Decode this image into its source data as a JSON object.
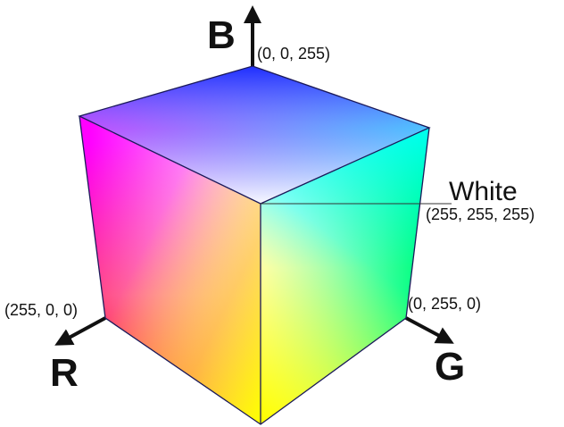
{
  "axes": {
    "b": {
      "letter": "B",
      "coord": "(0, 0, 255)"
    },
    "r": {
      "letter": "R",
      "coord": "(255, 0, 0)"
    },
    "g": {
      "letter": "G",
      "coord": "(0, 255, 0)"
    }
  },
  "white_corner": {
    "title": "White",
    "coord": "(255, 255, 255)"
  },
  "colors": {
    "white": "#ffffff",
    "red": "#ff0000",
    "green": "#00ff00",
    "blue": "#0000ff",
    "yellow": "#ffff00",
    "cyan": "#00ffff",
    "magenta": "#ff00ff",
    "edge": "#1b1a5a",
    "axis": "#111111"
  }
}
